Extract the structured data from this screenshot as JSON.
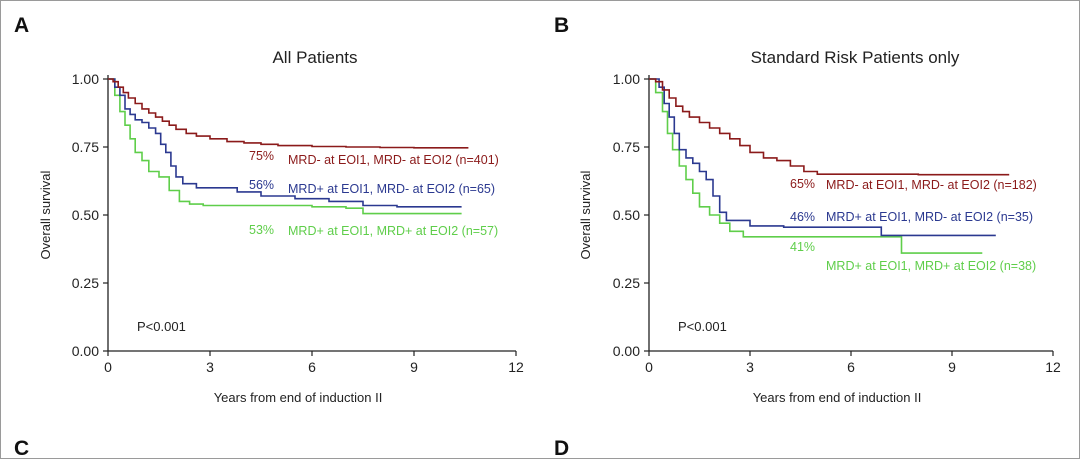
{
  "panel_labels": {
    "a": "A",
    "b": "B",
    "c": "C",
    "d": "D"
  },
  "colors": {
    "red": "#8b1a1a",
    "blue": "#2b3990",
    "green": "#5fce4a",
    "axis": "#222222"
  },
  "chart_data": [
    {
      "type": "line",
      "id": "A",
      "title": "All Patients",
      "xlabel": "Years from end of induction II",
      "ylabel": "Overall survival",
      "xlim": [
        0,
        12
      ],
      "ylim": [
        0,
        1
      ],
      "xticks": [
        0,
        3,
        6,
        9,
        12
      ],
      "yticks": [
        0,
        0.25,
        0.5,
        0.75,
        1.0
      ],
      "ytick_labels": [
        "0.00",
        "0.25",
        "0.50",
        "0.75",
        "1.00"
      ],
      "pvalue": "P<0.001",
      "series": [
        {
          "name": "MRD- at EOI1, MRD- at EOI2 (n=401)",
          "percent": "75%",
          "label": "MRD- at EOI1, MRD- at EOI2 (n=401)",
          "color": "#8b1a1a",
          "points": [
            [
              0,
              1.0
            ],
            [
              0.15,
              0.99
            ],
            [
              0.3,
              0.97
            ],
            [
              0.45,
              0.95
            ],
            [
              0.6,
              0.93
            ],
            [
              0.8,
              0.91
            ],
            [
              1.0,
              0.89
            ],
            [
              1.2,
              0.875
            ],
            [
              1.4,
              0.86
            ],
            [
              1.6,
              0.845
            ],
            [
              1.8,
              0.83
            ],
            [
              2.0,
              0.815
            ],
            [
              2.3,
              0.8
            ],
            [
              2.6,
              0.79
            ],
            [
              3.0,
              0.78
            ],
            [
              3.5,
              0.77
            ],
            [
              4.0,
              0.765
            ],
            [
              4.5,
              0.76
            ],
            [
              5.0,
              0.755
            ],
            [
              6.0,
              0.752
            ],
            [
              7.0,
              0.75
            ],
            [
              8.0,
              0.748
            ],
            [
              9.0,
              0.747
            ],
            [
              10.6,
              0.747
            ]
          ]
        },
        {
          "name": "MRD+ at EOI1, MRD- at EOI2 (n=65)",
          "percent": "56%",
          "label": "MRD+ at EOI1, MRD- at EOI2 (n=65)",
          "color": "#2b3990",
          "points": [
            [
              0,
              1.0
            ],
            [
              0.2,
              0.97
            ],
            [
              0.35,
              0.94
            ],
            [
              0.5,
              0.89
            ],
            [
              0.65,
              0.87
            ],
            [
              0.8,
              0.85
            ],
            [
              1.0,
              0.84
            ],
            [
              1.2,
              0.82
            ],
            [
              1.4,
              0.8
            ],
            [
              1.55,
              0.76
            ],
            [
              1.7,
              0.73
            ],
            [
              1.85,
              0.68
            ],
            [
              2.0,
              0.64
            ],
            [
              2.2,
              0.615
            ],
            [
              2.6,
              0.6
            ],
            [
              3.0,
              0.6
            ],
            [
              3.8,
              0.585
            ],
            [
              4.5,
              0.57
            ],
            [
              5.5,
              0.56
            ],
            [
              6.5,
              0.55
            ],
            [
              7.5,
              0.535
            ],
            [
              8.5,
              0.53
            ],
            [
              10.4,
              0.53
            ]
          ]
        },
        {
          "name": "MRD+ at EOI1, MRD+ at EOI2 (n=57)",
          "percent": "53%",
          "label": "MRD+ at EOI1, MRD+ at EOI2 (n=57)",
          "color": "#5fce4a",
          "points": [
            [
              0,
              1.0
            ],
            [
              0.2,
              0.94
            ],
            [
              0.35,
              0.88
            ],
            [
              0.5,
              0.83
            ],
            [
              0.65,
              0.78
            ],
            [
              0.8,
              0.73
            ],
            [
              1.0,
              0.7
            ],
            [
              1.2,
              0.66
            ],
            [
              1.5,
              0.64
            ],
            [
              1.8,
              0.59
            ],
            [
              2.1,
              0.55
            ],
            [
              2.4,
              0.54
            ],
            [
              2.8,
              0.535
            ],
            [
              3.5,
              0.535
            ],
            [
              5.0,
              0.535
            ],
            [
              6.0,
              0.53
            ],
            [
              7.0,
              0.525
            ],
            [
              7.5,
              0.505
            ],
            [
              8.5,
              0.505
            ],
            [
              10.4,
              0.505
            ]
          ]
        }
      ]
    },
    {
      "type": "line",
      "id": "B",
      "title": "Standard Risk Patients only",
      "xlabel": "Years from end of induction II",
      "ylabel": "Overall survival",
      "xlim": [
        0,
        12
      ],
      "ylim": [
        0,
        1
      ],
      "xticks": [
        0,
        3,
        6,
        9,
        12
      ],
      "yticks": [
        0,
        0.25,
        0.5,
        0.75,
        1.0
      ],
      "ytick_labels": [
        "0.00",
        "0.25",
        "0.50",
        "0.75",
        "1.00"
      ],
      "pvalue": "P<0.001",
      "series": [
        {
          "name": "MRD- at EOI1, MRD- at EOI2 (n=182)",
          "percent": "65%",
          "label": "MRD- at EOI1, MRD- at EOI2 (n=182)",
          "color": "#8b1a1a",
          "points": [
            [
              0,
              1.0
            ],
            [
              0.2,
              0.99
            ],
            [
              0.4,
              0.96
            ],
            [
              0.6,
              0.93
            ],
            [
              0.8,
              0.9
            ],
            [
              1.0,
              0.88
            ],
            [
              1.2,
              0.86
            ],
            [
              1.5,
              0.84
            ],
            [
              1.8,
              0.82
            ],
            [
              2.1,
              0.8
            ],
            [
              2.4,
              0.78
            ],
            [
              2.7,
              0.755
            ],
            [
              3.0,
              0.73
            ],
            [
              3.4,
              0.71
            ],
            [
              3.8,
              0.7
            ],
            [
              4.2,
              0.68
            ],
            [
              4.6,
              0.66
            ],
            [
              5.0,
              0.65
            ],
            [
              6.0,
              0.65
            ],
            [
              8.0,
              0.648
            ],
            [
              10.7,
              0.648
            ]
          ]
        },
        {
          "name": "MRD+ at EOI1, MRD- at EOI2 (n=35)",
          "percent": "46%",
          "label": "MRD+ at EOI1, MRD- at EOI2 (n=35)",
          "color": "#2b3990",
          "points": [
            [
              0,
              1.0
            ],
            [
              0.3,
              0.97
            ],
            [
              0.45,
              0.91
            ],
            [
              0.6,
              0.86
            ],
            [
              0.75,
              0.8
            ],
            [
              0.9,
              0.74
            ],
            [
              1.1,
              0.71
            ],
            [
              1.3,
              0.69
            ],
            [
              1.5,
              0.66
            ],
            [
              1.7,
              0.63
            ],
            [
              1.9,
              0.57
            ],
            [
              2.1,
              0.51
            ],
            [
              2.3,
              0.48
            ],
            [
              2.7,
              0.48
            ],
            [
              3.0,
              0.46
            ],
            [
              4.0,
              0.455
            ],
            [
              6.8,
              0.455
            ],
            [
              6.9,
              0.425
            ],
            [
              10.3,
              0.425
            ]
          ]
        },
        {
          "name": "MRD+ at EOI1, MRD+ at EOI2 (n=38)",
          "percent": "41%",
          "label": "MRD+ at EOI1, MRD+ at EOI2 (n=38)",
          "color": "#5fce4a",
          "points": [
            [
              0,
              1.0
            ],
            [
              0.2,
              0.95
            ],
            [
              0.4,
              0.88
            ],
            [
              0.55,
              0.8
            ],
            [
              0.7,
              0.74
            ],
            [
              0.9,
              0.68
            ],
            [
              1.1,
              0.63
            ],
            [
              1.3,
              0.58
            ],
            [
              1.5,
              0.53
            ],
            [
              1.8,
              0.5
            ],
            [
              2.1,
              0.47
            ],
            [
              2.4,
              0.44
            ],
            [
              2.8,
              0.42
            ],
            [
              3.5,
              0.42
            ],
            [
              5.0,
              0.42
            ],
            [
              7.4,
              0.42
            ],
            [
              7.5,
              0.36
            ],
            [
              9.9,
              0.36
            ]
          ]
        }
      ]
    }
  ]
}
